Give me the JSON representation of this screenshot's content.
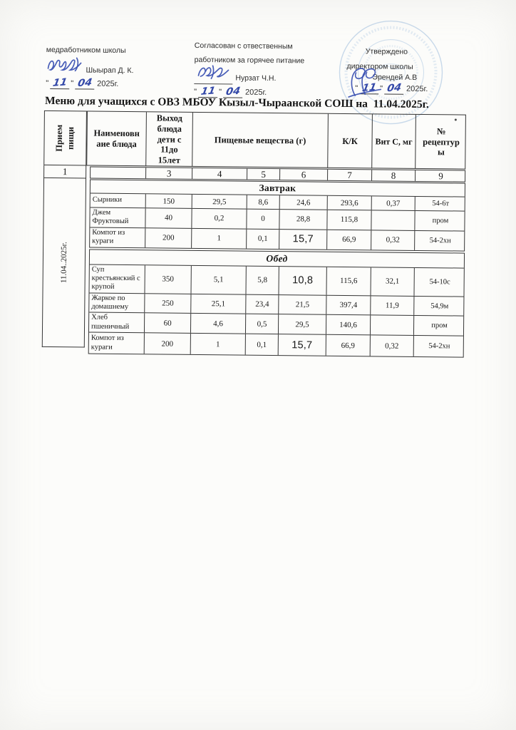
{
  "glyphs": {
    "q": "\""
  },
  "colors": {
    "ink": "#1e1e1e",
    "hand_blue": "#3348a8",
    "stamp_blue": "#88add6"
  },
  "approvals": {
    "left": {
      "role": "медработником школы",
      "name": "Шыырап Д. К.",
      "date": {
        "day": "11",
        "month": "04",
        "year": "2025г."
      }
    },
    "middle": {
      "line1": "Согласован с отвественным",
      "line2": "работником за горячее питание",
      "name": "Нурзат Ч.Н.",
      "date": {
        "day": "11",
        "month": "04",
        "year": "2025г."
      }
    },
    "right": {
      "line1": "Утверждено",
      "line2": "директором школы",
      "name": "Эрендей А.В",
      "date": {
        "day": "11",
        "month": "04",
        "year": "2025г."
      }
    }
  },
  "title": "Меню для учащихся с ОВЗ МБОУ Кызыл-Чыраанской СОШ на  11.04.2025г.",
  "table": {
    "col1_header_lines": [
      "Прием",
      "пищи"
    ],
    "col1_number": "1",
    "col1_date_vertical": "11.04..2025г.",
    "headers": {
      "name_lines": [
        "Наименовн",
        "аие блюда"
      ],
      "portion_lines": [
        "Выход",
        "блюда",
        "дети с",
        "11до",
        "15лет"
      ],
      "nutrients": "Пищевые вещества (г)",
      "kk": "К/К",
      "vitc": "Вит С, мг",
      "recipe_lines": [
        "№",
        "рецептур",
        "ы"
      ]
    },
    "column_numbers": [
      "3",
      "4",
      "5",
      "6",
      "7",
      "8",
      "9"
    ],
    "sections": [
      {
        "label": "Завтрак",
        "italic": false,
        "rows": [
          {
            "name": "Сырники",
            "cells": [
              "150",
              "29,5",
              "8,6",
              "24,6",
              "293,6",
              "0,37",
              "54-6т"
            ],
            "big": -1
          },
          {
            "name": "Джем Фруктовый",
            "cells": [
              "40",
              "0,2",
              "0",
              "28,8",
              "115,8",
              "",
              "пром"
            ],
            "big": -1
          },
          {
            "name": "Компот из кураги",
            "cells": [
              "200",
              "1",
              "0,1",
              "15,7",
              "66,9",
              "0,32",
              "54-2хн"
            ],
            "big": 3
          }
        ]
      },
      {
        "label": "Обед",
        "italic": true,
        "rows": [
          {
            "name": "Суп крестьянский с крупой",
            "cells": [
              "350",
              "5,1",
              "5,8",
              "10,8",
              "115,6",
              "32,1",
              "54-10с"
            ],
            "big": 3
          },
          {
            "name": "Жаркое по домашнему",
            "cells": [
              "250",
              "25,1",
              "23,4",
              "21,5",
              "397,4",
              "11,9",
              "54,9м"
            ],
            "big": -1
          },
          {
            "name": "Хлеб пшеничный",
            "cells": [
              "60",
              "4,6",
              "0,5",
              "29,5",
              "140,6",
              "",
              "пром"
            ],
            "big": -1
          },
          {
            "name": "Компот из кураги",
            "cells": [
              "200",
              "1",
              "0,1",
              "15,7",
              "66,9",
              "0,32",
              "54-2хн"
            ],
            "big": 3
          }
        ]
      }
    ]
  }
}
